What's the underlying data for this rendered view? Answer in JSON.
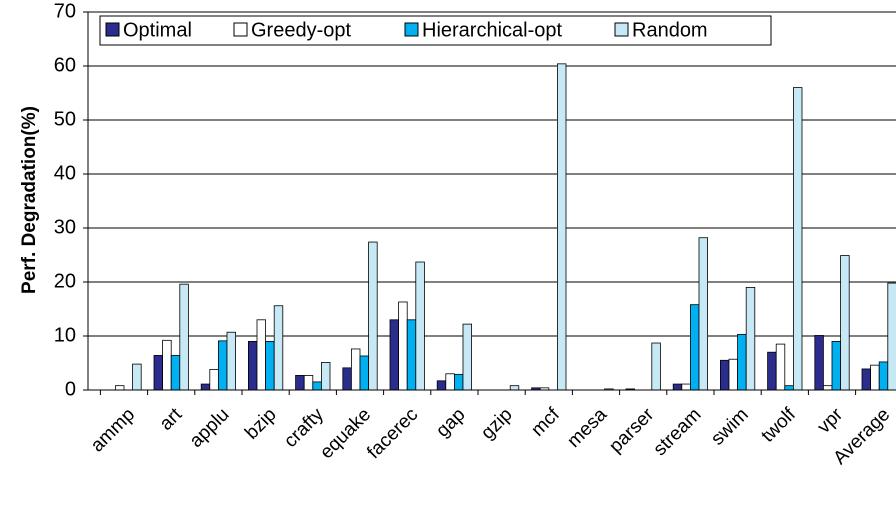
{
  "chart_data": {
    "type": "bar",
    "y_label": "Perf. Degradation(%)",
    "categories": [
      "ammp",
      "art",
      "applu",
      "bzip",
      "crafty",
      "equake",
      "facerec",
      "gap",
      "gzip",
      "mcf",
      "mesa",
      "parser",
      "stream",
      "swim",
      "twolf",
      "vpr",
      "Average"
    ],
    "series": [
      {
        "name": "Optimal",
        "color": "#2b2d8c",
        "values": [
          0,
          6.4,
          1.1,
          9.0,
          2.7,
          4.1,
          13.0,
          1.7,
          0,
          0.4,
          0,
          0.2,
          1.1,
          5.5,
          7.0,
          10.1,
          3.9
        ]
      },
      {
        "name": "Greedy-opt",
        "color": "#ffffff",
        "values": [
          0.8,
          9.2,
          3.8,
          13.0,
          2.7,
          7.6,
          16.3,
          3.0,
          0,
          0.4,
          0,
          0,
          1.1,
          5.7,
          8.5,
          0.8,
          4.6
        ]
      },
      {
        "name": "Hierarchical-opt",
        "color": "#00b0f0",
        "values": [
          0,
          6.4,
          9.1,
          9.0,
          1.5,
          6.3,
          13.0,
          2.9,
          0,
          0,
          0,
          0,
          15.8,
          10.3,
          0.8,
          9.0,
          5.2
        ]
      },
      {
        "name": "Random",
        "color": "#c7e9f5",
        "values": [
          4.8,
          19.6,
          10.7,
          15.6,
          5.1,
          27.4,
          23.7,
          12.2,
          0.8,
          60.4,
          0.2,
          8.7,
          28.2,
          19.0,
          56.0,
          24.9,
          19.8
        ]
      }
    ],
    "ylim": [
      0,
      70
    ],
    "yticks": [
      0,
      10,
      20,
      30,
      40,
      50,
      60,
      70
    ],
    "grid": true
  }
}
